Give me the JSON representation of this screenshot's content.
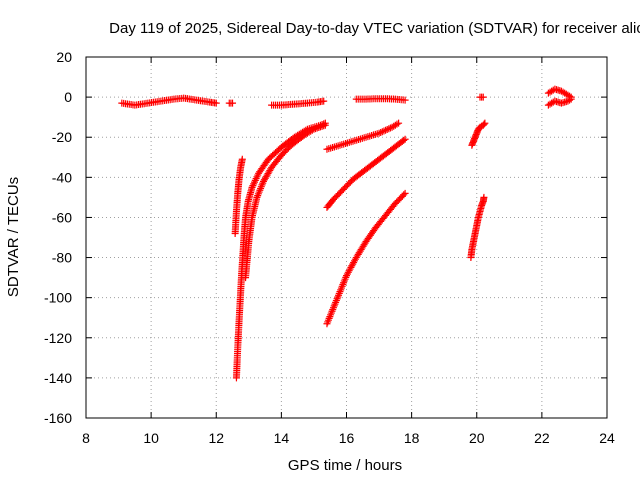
{
  "chart_data": {
    "type": "scatter",
    "title": "Day 119 of 2025, Sidereal Day-to-day VTEC variation (SDTVAR) for receiver alic",
    "xlabel": "GPS time / hours",
    "ylabel": "SDTVAR / TECUs",
    "xlim": [
      8,
      24
    ],
    "ylim": [
      -160,
      20
    ],
    "xticks": [
      8,
      10,
      12,
      14,
      16,
      18,
      20,
      22,
      24
    ],
    "yticks": [
      20,
      0,
      -20,
      -40,
      -60,
      -80,
      -100,
      -120,
      -140,
      -160
    ],
    "grid": true,
    "marker": "plus",
    "color": "#ff0000",
    "series": [
      {
        "name": "arc-a",
        "x": [
          9.1,
          9.5,
          9.9,
          10.3,
          10.7,
          11.0,
          11.4,
          11.8,
          12.0
        ],
        "y": [
          -3,
          -4,
          -3,
          -2,
          -1,
          -0.5,
          -1.5,
          -2.5,
          -3
        ]
      },
      {
        "name": "arc-b",
        "x": [
          12.4,
          12.5
        ],
        "y": [
          -3,
          -3
        ]
      },
      {
        "name": "arc-c",
        "x": [
          13.7,
          14.0,
          14.4,
          14.8,
          15.1,
          15.3
        ],
        "y": [
          -4,
          -4,
          -3.5,
          -3,
          -2.5,
          -2
        ]
      },
      {
        "name": "arc-d",
        "x": [
          16.3,
          16.6,
          16.9,
          17.2,
          17.5,
          17.8
        ],
        "y": [
          -1,
          -1,
          -0.8,
          -0.8,
          -1,
          -1.5
        ]
      },
      {
        "name": "arc-e",
        "x": [
          20.1,
          20.2
        ],
        "y": [
          0,
          0
        ]
      },
      {
        "name": "arc-f",
        "x": [
          22.2,
          22.4,
          22.6,
          22.8,
          22.9
        ],
        "y": [
          2,
          4,
          3,
          1,
          0
        ]
      },
      {
        "name": "arc-g",
        "x": [
          22.2,
          22.4,
          22.6,
          22.8,
          22.9
        ],
        "y": [
          -4,
          -2,
          -3,
          -2,
          -1
        ]
      },
      {
        "name": "arc-h",
        "x": [
          12.62,
          12.66,
          12.7,
          12.74,
          12.78,
          12.82,
          12.86,
          12.9,
          12.98,
          13.1,
          13.3,
          13.6,
          14.0,
          14.4,
          14.8,
          15.2,
          15.35
        ],
        "y": [
          -140,
          -125,
          -112,
          -100,
          -88,
          -78,
          -68,
          -60,
          -52,
          -45,
          -38,
          -31,
          -25,
          -20,
          -16,
          -14,
          -13
        ]
      },
      {
        "name": "arc-i",
        "x": [
          12.58,
          12.62,
          12.66,
          12.7,
          12.75,
          12.8
        ],
        "y": [
          -68,
          -57,
          -48,
          -41,
          -35,
          -31
        ]
      },
      {
        "name": "arc-j",
        "x": [
          12.9,
          13.0,
          13.1,
          13.25,
          13.45,
          13.7,
          14.0,
          14.3,
          14.7,
          15.0,
          15.35
        ],
        "y": [
          -90,
          -72,
          -60,
          -50,
          -42,
          -35,
          -29,
          -24,
          -19,
          -16,
          -14
        ]
      },
      {
        "name": "arc-k",
        "x": [
          15.4,
          15.8,
          16.2,
          16.6,
          17.0,
          17.4,
          17.6
        ],
        "y": [
          -26,
          -24,
          -22,
          -20,
          -18,
          -15,
          -13
        ]
      },
      {
        "name": "arc-l",
        "x": [
          15.4,
          15.6,
          15.9,
          16.2,
          16.6,
          17.0,
          17.4,
          17.8
        ],
        "y": [
          -55,
          -51,
          -46,
          -41,
          -36,
          -31,
          -26,
          -21
        ]
      },
      {
        "name": "arc-m",
        "x": [
          15.4,
          15.6,
          15.8,
          16.0,
          16.3,
          16.6,
          16.9,
          17.2,
          17.5,
          17.8
        ],
        "y": [
          -113,
          -105,
          -97,
          -89,
          -80,
          -72,
          -65,
          -59,
          -53,
          -48
        ]
      },
      {
        "name": "arc-n",
        "x": [
          19.85,
          19.9,
          19.95,
          20.0,
          20.05,
          20.1,
          20.2,
          20.25
        ],
        "y": [
          -24,
          -22,
          -20,
          -18,
          -16,
          -15,
          -14,
          -13
        ]
      },
      {
        "name": "arc-o",
        "x": [
          19.82,
          19.85,
          19.9,
          19.95,
          20.0,
          20.05,
          20.1,
          20.15,
          20.2,
          20.22
        ],
        "y": [
          -80,
          -76,
          -72,
          -68,
          -64,
          -60,
          -57,
          -54,
          -52,
          -50
        ]
      }
    ]
  }
}
